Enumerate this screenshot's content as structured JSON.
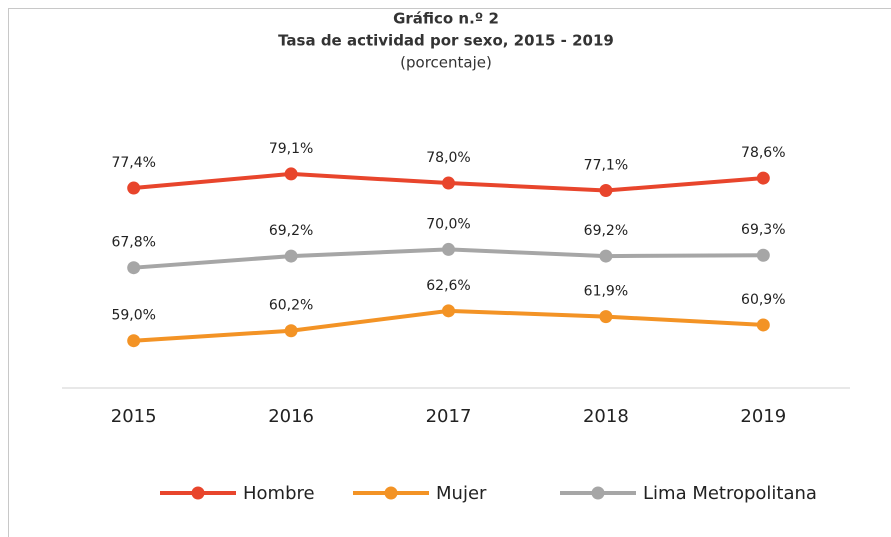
{
  "chart_data": {
    "type": "line",
    "title": "Gráfico n.º 2",
    "subtitle": "Tasa de actividad por sexo, 2015 - 2019",
    "unit_note": "(porcentaje)",
    "categories": [
      "2015",
      "2016",
      "2017",
      "2018",
      "2019"
    ],
    "ylim": [
      53.3,
      85.6
    ],
    "legend": "bottom",
    "series": [
      {
        "name": "Hombre",
        "color": "#e8452c",
        "values": [
          77.4,
          79.1,
          78.0,
          77.1,
          78.6
        ],
        "value_labels": [
          "77,4%",
          "79,1%",
          "78,0%",
          "77,1%",
          "78,6%"
        ]
      },
      {
        "name": "Mujer",
        "color": "#f39325",
        "values": [
          59.0,
          60.2,
          62.6,
          61.9,
          60.9
        ],
        "value_labels": [
          "59,0%",
          "60,2%",
          "62,6%",
          "61,9%",
          "60,9%"
        ]
      },
      {
        "name": "Lima Metropolitana",
        "color": "#a6a6a6",
        "values": [
          67.8,
          69.2,
          70.0,
          69.2,
          69.3
        ],
        "value_labels": [
          "67,8%",
          "69,2%",
          "70,0%",
          "69,2%",
          "69,3%"
        ]
      }
    ]
  }
}
